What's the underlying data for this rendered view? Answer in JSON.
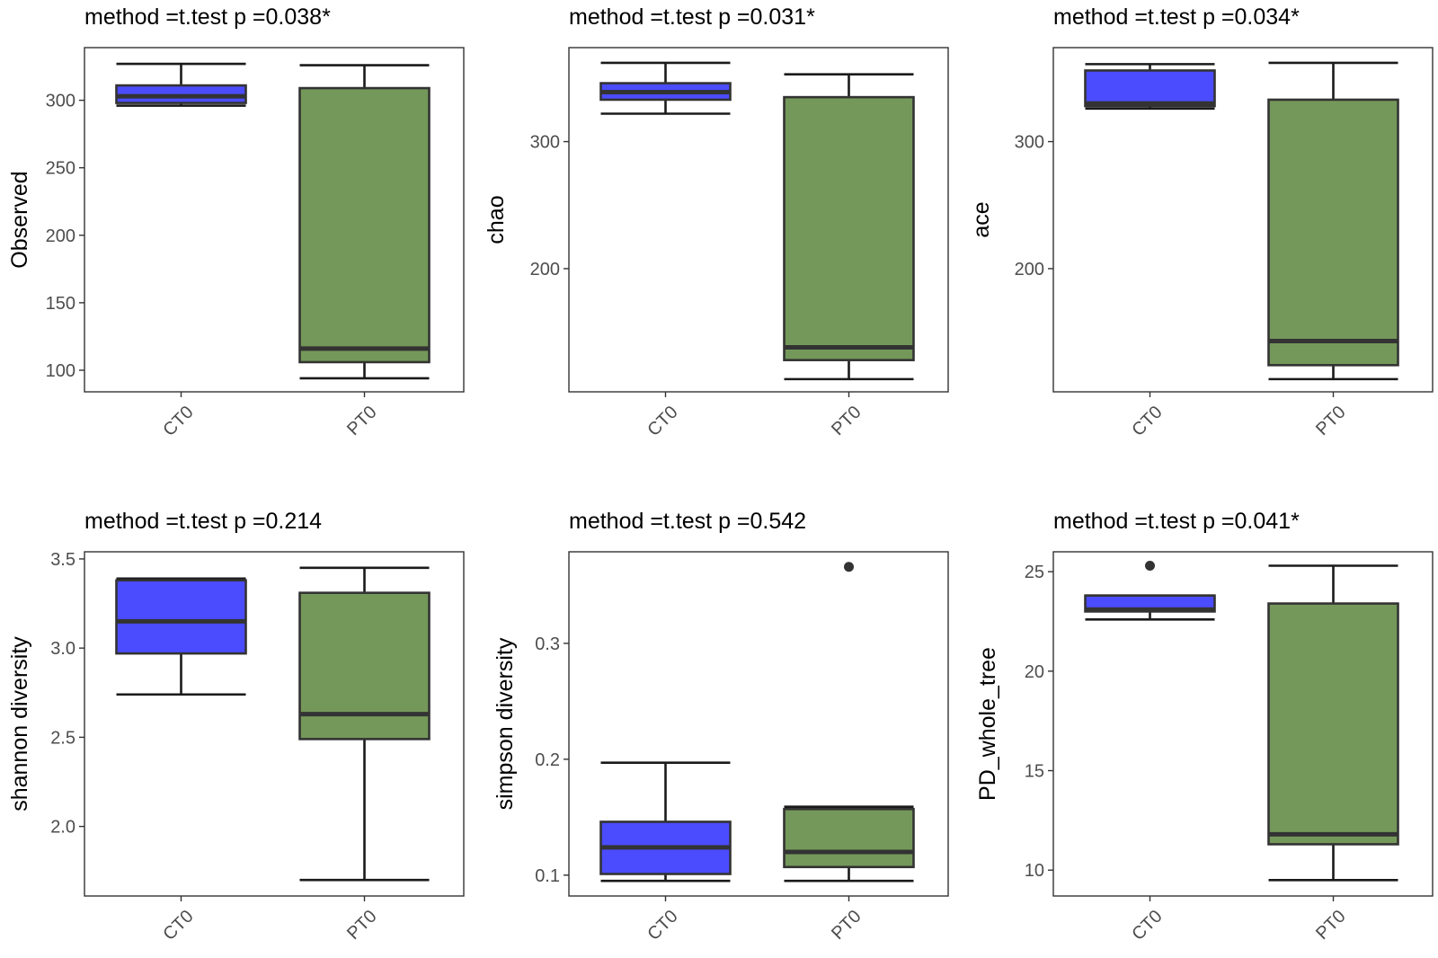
{
  "colors": {
    "CT0": "#4c4cff",
    "PT0": "#74985a",
    "outline": "#333333",
    "text": "#000000",
    "tick_text": "#4d4d4d"
  },
  "chart_data": [
    {
      "type": "boxplot",
      "title": "method =t.test p =0.038*",
      "ylabel": "Observed",
      "xlabel": "",
      "categories": [
        "CT0",
        "PT0"
      ],
      "ylim": [
        84,
        339
      ],
      "yticks": [
        100,
        150,
        200,
        250,
        300
      ],
      "ytick_labels": [
        "100",
        "150",
        "200",
        "250",
        "300"
      ],
      "boxes": [
        {
          "group": "CT0",
          "whisker_low": 296,
          "q1": 298,
          "median": 303,
          "q3": 311,
          "whisker_high": 327,
          "outliers": []
        },
        {
          "group": "PT0",
          "whisker_low": 94,
          "q1": 106,
          "median": 116,
          "q3": 309,
          "whisker_high": 326,
          "outliers": []
        }
      ]
    },
    {
      "type": "boxplot",
      "title": "method =t.test p =0.031*",
      "ylabel": "chao",
      "xlabel": "",
      "categories": [
        "CT0",
        "PT0"
      ],
      "ylim": [
        103,
        374
      ],
      "yticks": [
        200,
        300
      ],
      "ytick_labels": [
        "200",
        "300"
      ],
      "boxes": [
        {
          "group": "CT0",
          "whisker_low": 322,
          "q1": 333,
          "median": 339,
          "q3": 346,
          "whisker_high": 362,
          "outliers": []
        },
        {
          "group": "PT0",
          "whisker_low": 113,
          "q1": 128,
          "median": 138,
          "q3": 335,
          "whisker_high": 353,
          "outliers": []
        }
      ]
    },
    {
      "type": "boxplot",
      "title": "method =t.test p =0.034*",
      "ylabel": "ace",
      "xlabel": "",
      "categories": [
        "CT0",
        "PT0"
      ],
      "ylim": [
        103,
        374
      ],
      "yticks": [
        200,
        300
      ],
      "ytick_labels": [
        "200",
        "300"
      ],
      "boxes": [
        {
          "group": "CT0",
          "whisker_low": 326,
          "q1": 328,
          "median": 330,
          "q3": 356,
          "whisker_high": 361,
          "outliers": []
        },
        {
          "group": "PT0",
          "whisker_low": 113,
          "q1": 124,
          "median": 143,
          "q3": 333,
          "whisker_high": 362,
          "outliers": []
        }
      ]
    },
    {
      "type": "boxplot",
      "title": "method =t.test p =0.214",
      "ylabel": "shannon diversity",
      "xlabel": "",
      "categories": [
        "CT0",
        "PT0"
      ],
      "ylim": [
        1.61,
        3.54
      ],
      "yticks": [
        2.0,
        2.5,
        3.0,
        3.5
      ],
      "ytick_labels": [
        "2.0",
        "2.5",
        "3.0",
        "3.5"
      ],
      "boxes": [
        {
          "group": "CT0",
          "whisker_low": 2.74,
          "q1": 2.97,
          "median": 3.15,
          "q3": 3.38,
          "whisker_high": 3.39,
          "outliers": []
        },
        {
          "group": "PT0",
          "whisker_low": 1.7,
          "q1": 2.49,
          "median": 2.63,
          "q3": 3.31,
          "whisker_high": 3.45,
          "outliers": []
        }
      ]
    },
    {
      "type": "boxplot",
      "title": "method =t.test p =0.542",
      "ylabel": "simpson diversity",
      "xlabel": "",
      "categories": [
        "CT0",
        "PT0"
      ],
      "ylim": [
        0.082,
        0.379
      ],
      "yticks": [
        0.1,
        0.2,
        0.3
      ],
      "ytick_labels": [
        "0.1",
        "0.2",
        "0.3"
      ],
      "boxes": [
        {
          "group": "CT0",
          "whisker_low": 0.095,
          "q1": 0.101,
          "median": 0.124,
          "q3": 0.146,
          "whisker_high": 0.197,
          "outliers": []
        },
        {
          "group": "PT0",
          "whisker_low": 0.095,
          "q1": 0.107,
          "median": 0.12,
          "q3": 0.157,
          "whisker_high": 0.159,
          "outliers": [
            0.366
          ]
        }
      ]
    },
    {
      "type": "boxplot",
      "title": "method =t.test p =0.041*",
      "ylabel": "PD_whole_tree",
      "xlabel": "",
      "categories": [
        "CT0",
        "PT0"
      ],
      "ylim": [
        8.7,
        26.0
      ],
      "yticks": [
        10,
        15,
        20,
        25
      ],
      "ytick_labels": [
        "10",
        "15",
        "20",
        "25"
      ],
      "boxes": [
        {
          "group": "CT0",
          "whisker_low": 22.6,
          "q1": 23.0,
          "median": 23.1,
          "q3": 23.8,
          "whisker_high": 23.8,
          "outliers": [
            25.3
          ]
        },
        {
          "group": "PT0",
          "whisker_low": 9.5,
          "q1": 11.3,
          "median": 11.8,
          "q3": 23.4,
          "whisker_high": 25.3,
          "outliers": []
        }
      ]
    }
  ]
}
